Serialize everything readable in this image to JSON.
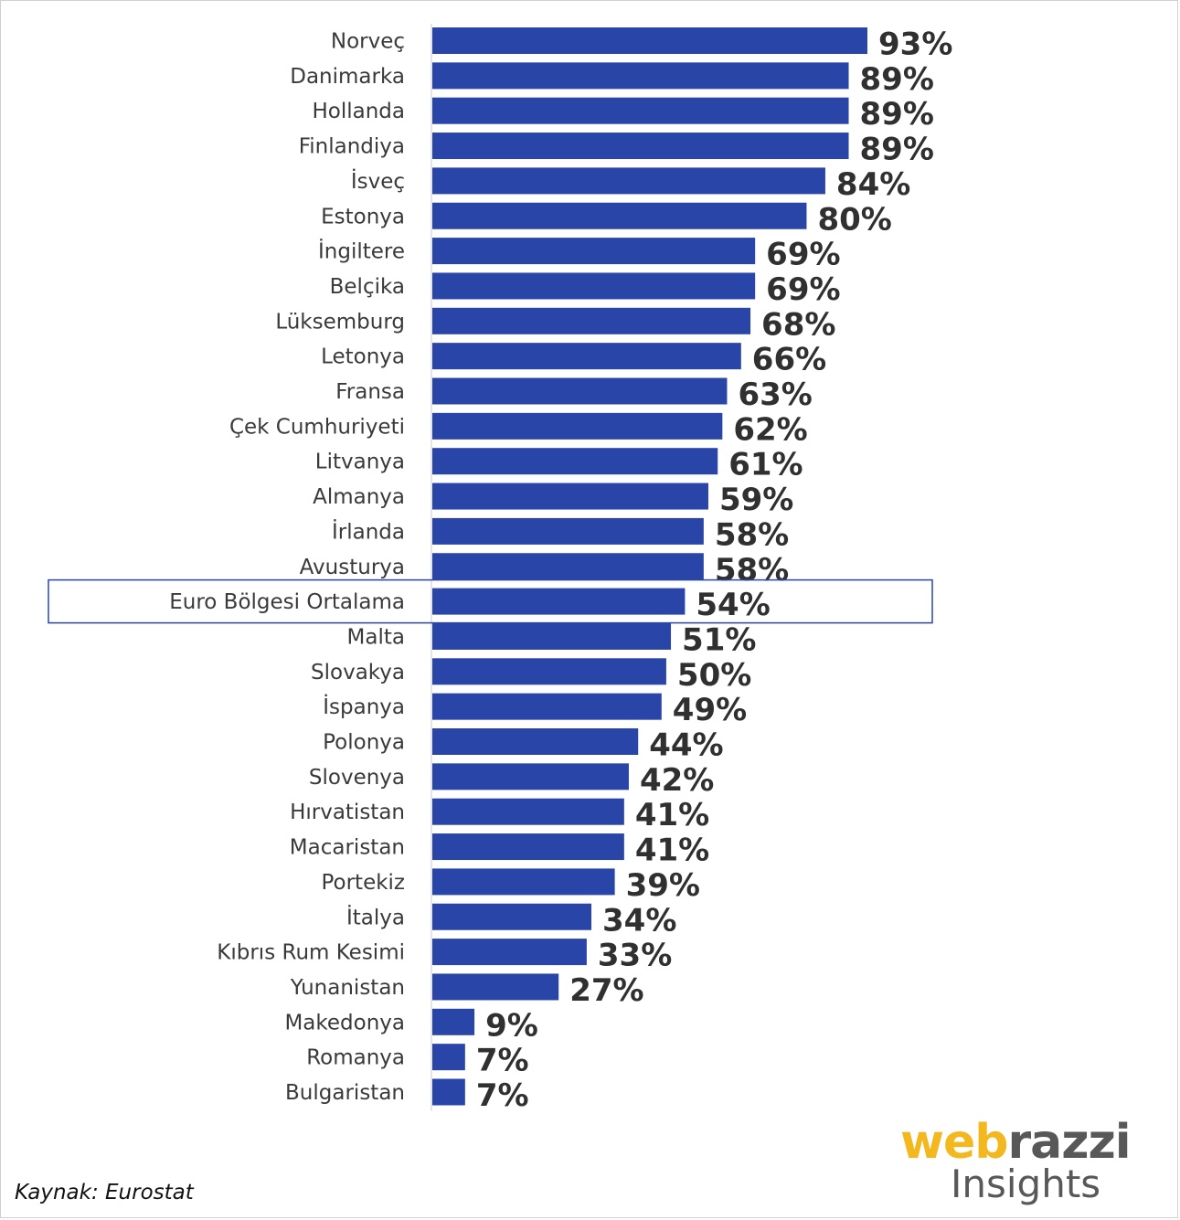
{
  "chart_data": {
    "type": "bar",
    "orientation": "horizontal",
    "categories": [
      "Norveç",
      "Danimarka",
      "Hollanda",
      "Finlandiya",
      "İsveç",
      "Estonya",
      "İngiltere",
      "Belçika",
      "Lüksemburg",
      "Letonya",
      "Fransa",
      "Çek Cumhuriyeti",
      "Litvanya",
      "Almanya",
      "İrlanda",
      "Avusturya",
      "Euro Bölgesi Ortalama",
      "Malta",
      "Slovakya",
      "İspanya",
      "Polonya",
      "Slovenya",
      "Hırvatistan",
      "Macaristan",
      "Portekiz",
      "İtalya",
      "Kıbrıs Rum Kesimi",
      "Yunanistan",
      "Makedonya",
      "Romanya",
      "Bulgaristan"
    ],
    "values": [
      93,
      89,
      89,
      89,
      84,
      80,
      69,
      69,
      68,
      66,
      63,
      62,
      61,
      59,
      58,
      58,
      54,
      51,
      50,
      49,
      44,
      42,
      41,
      41,
      39,
      34,
      33,
      27,
      9,
      7,
      7
    ],
    "value_labels": [
      "93%",
      "89%",
      "89%",
      "89%",
      "84%",
      "80%",
      "69%",
      "69%",
      "68%",
      "66%",
      "63%",
      "62%",
      "61%",
      "59%",
      "58%",
      "58%",
      "54%",
      "51%",
      "50%",
      "49%",
      "44%",
      "42%",
      "41%",
      "41%",
      "39%",
      "34%",
      "33%",
      "27%",
      "9%",
      "7%",
      "7%"
    ],
    "highlight_category": "Euro Bölgesi Ortalama",
    "xlim": [
      0,
      100
    ],
    "bar_color": "#2a45a8",
    "highlight_border_color": "#2a45a8",
    "grid": false,
    "legend": "none"
  },
  "source_text": "Kaynak: Eurostat",
  "logo": {
    "brand_part1": "web",
    "brand_part2": "razzi",
    "subtitle": "Insights",
    "brand_color_primary": "#f2b81e",
    "brand_color_secondary": "#585858"
  }
}
